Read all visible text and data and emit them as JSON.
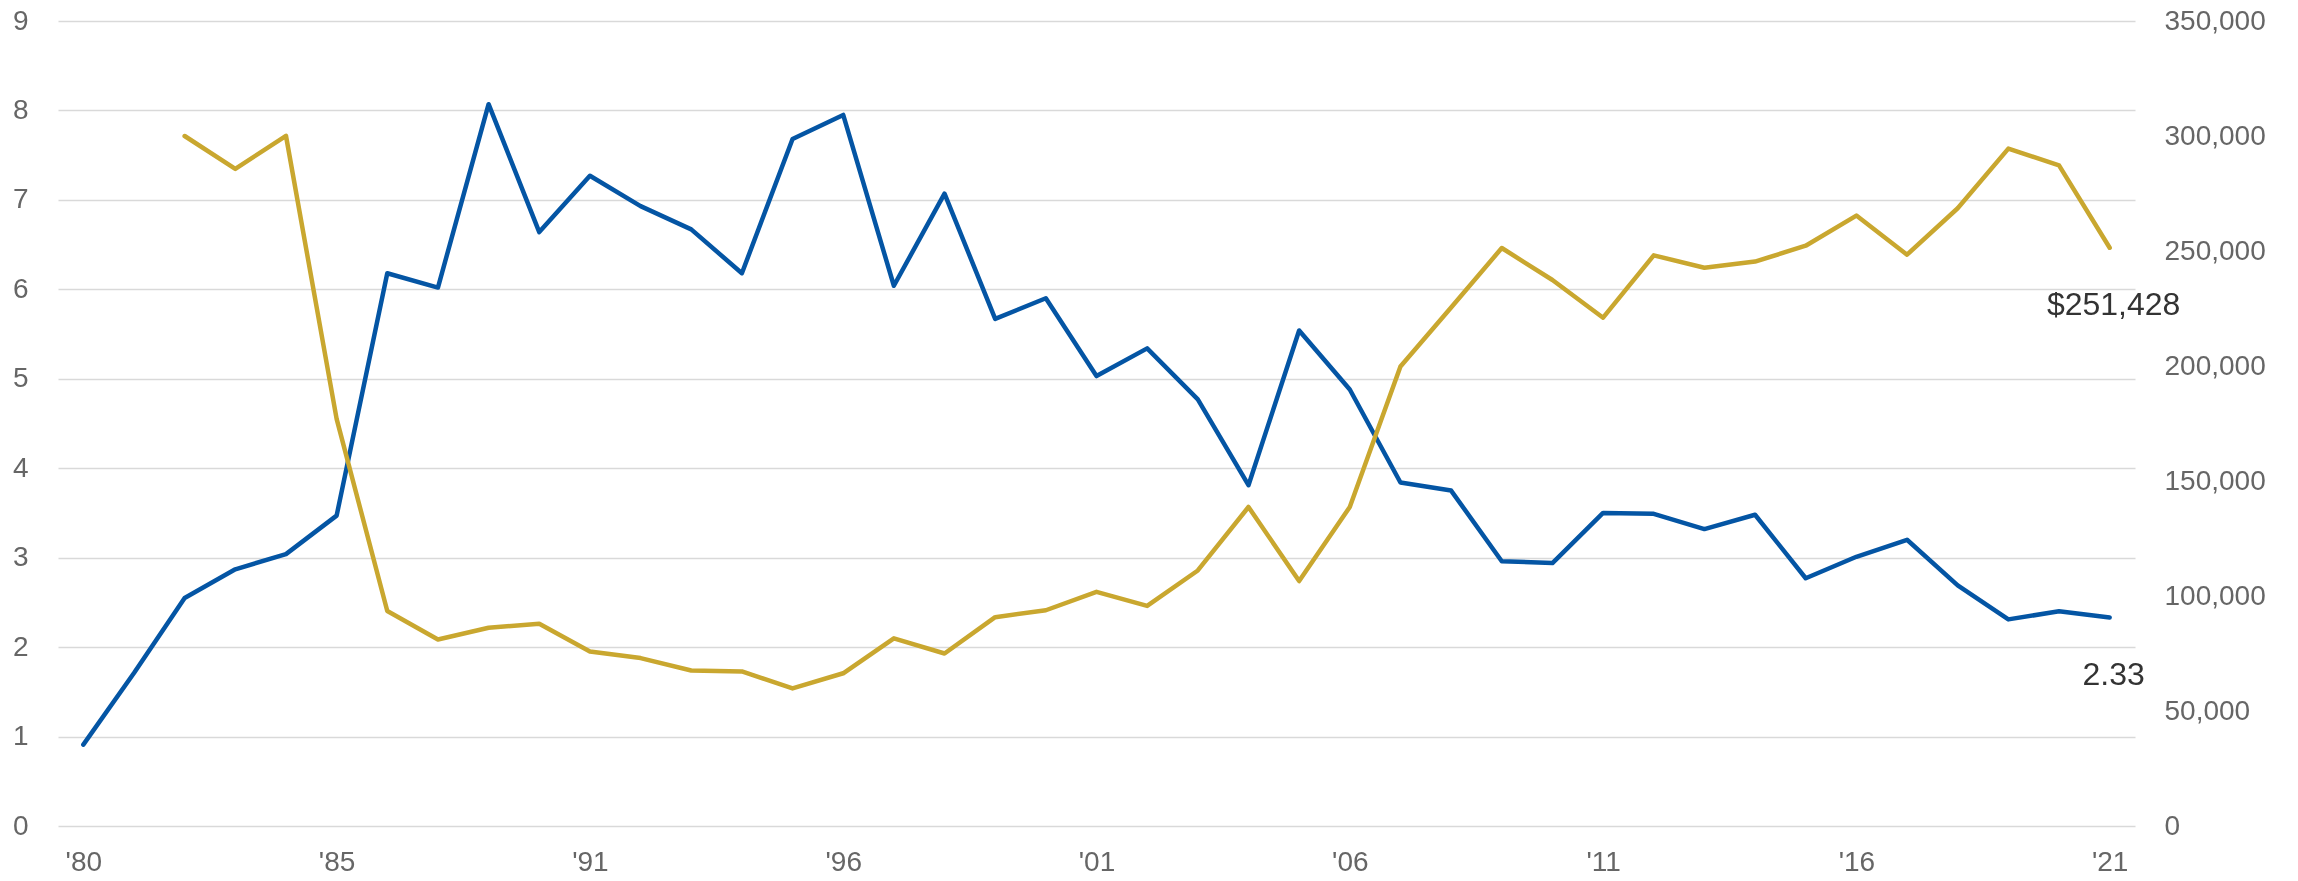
{
  "chart_data": {
    "type": "line",
    "categories": [
      "'80",
      null,
      null,
      null,
      null,
      "'85",
      null,
      null,
      null,
      null,
      "'91",
      null,
      null,
      null,
      null,
      "'96",
      null,
      null,
      null,
      null,
      "'01",
      null,
      null,
      null,
      null,
      "'06",
      null,
      null,
      null,
      null,
      "'11",
      null,
      null,
      null,
      null,
      "'16",
      null,
      null,
      null,
      null,
      "'21"
    ],
    "series": [
      {
        "color": "#0455a4",
        "values": [
          0.91,
          1.71,
          2.55,
          2.87,
          3.04,
          3.47,
          6.18,
          6.02,
          8.07,
          6.64,
          7.27,
          6.93,
          6.67,
          6.18,
          7.68,
          7.95,
          6.04,
          7.07,
          5.67,
          5.9,
          5.03,
          5.34,
          4.77,
          3.81,
          5.54,
          4.88,
          3.84,
          3.75,
          2.96,
          2.94,
          3.5,
          3.49,
          3.32,
          3.48,
          2.77,
          3.01,
          3.2,
          2.69,
          2.31,
          2.4,
          2.33
        ],
        "value_labels": [
          null,
          null,
          null,
          null,
          null,
          null,
          null,
          null,
          null,
          null,
          null,
          null,
          null,
          null,
          null,
          null,
          null,
          null,
          null,
          null,
          null,
          null,
          null,
          null,
          null,
          null,
          null,
          null,
          null,
          null,
          null,
          null,
          null,
          null,
          null,
          null,
          null,
          null,
          null,
          null,
          "2.33"
        ]
      },
      {
        "color": "#c9a72f",
        "axis": "y2",
        "values": [
          null,
          null,
          300000,
          285700,
          300100,
          177000,
          93500,
          81100,
          86200,
          87900,
          75900,
          73000,
          67600,
          67200,
          59800,
          66400,
          81600,
          75000,
          90800,
          93800,
          101800,
          95700,
          111100,
          138700,
          106500,
          138700,
          199800,
          225400,
          251300,
          237400,
          221000,
          248100,
          242700,
          245400,
          252300,
          265400,
          248400,
          268600,
          294500,
          287200,
          251428
        ],
        "value_labels": [
          null,
          null,
          null,
          null,
          null,
          null,
          null,
          null,
          null,
          null,
          null,
          null,
          null,
          null,
          null,
          null,
          null,
          null,
          null,
          null,
          null,
          null,
          null,
          null,
          null,
          null,
          null,
          null,
          null,
          null,
          null,
          null,
          null,
          null,
          null,
          null,
          null,
          null,
          null,
          null,
          "$251,428"
        ]
      }
    ],
    "ylim": [
      0,
      9
    ],
    "yticks": [
      0,
      1,
      2,
      3,
      4,
      5,
      6,
      7,
      8,
      9
    ],
    "y2lim": [
      0,
      350000
    ],
    "y2ticks": [
      0,
      {
        "value": 50000,
        "label": "50,000"
      },
      {
        "value": 100000,
        "label": "100,000"
      },
      {
        "value": 150000,
        "label": "150,000"
      },
      {
        "value": 200000,
        "label": "200,000"
      },
      {
        "value": 250000,
        "label": "250,000"
      },
      {
        "value": 300000,
        "label": "300,000"
      },
      {
        "value": 350000,
        "label": "350,000"
      }
    ],
    "grid": "y"
  }
}
